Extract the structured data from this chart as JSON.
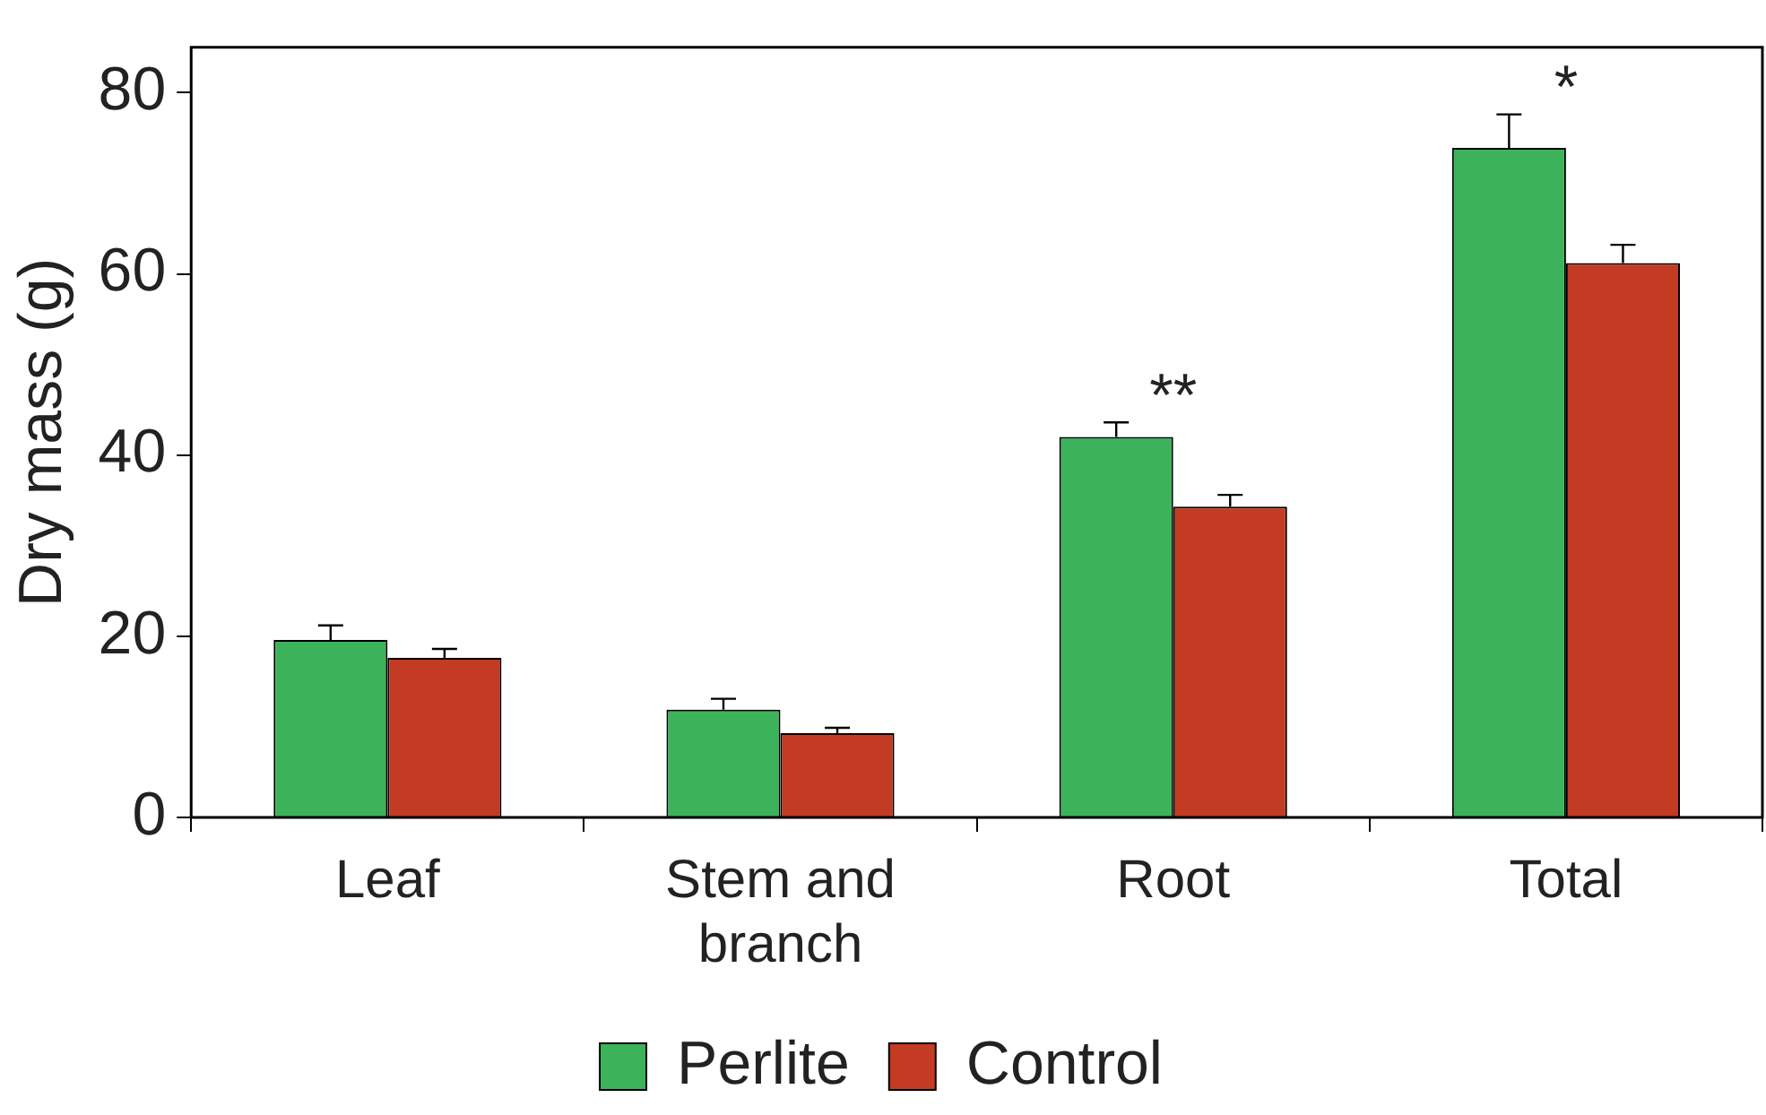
{
  "chart_data": {
    "type": "bar",
    "ylabel": "Dry mass (g)",
    "categories": [
      "Leaf",
      "Stem and branch",
      "Root",
      "Total"
    ],
    "series": [
      {
        "name": "Perlite",
        "color": "#3cb35a",
        "values": [
          19.6,
          11.9,
          42.0,
          73.9
        ],
        "errors": [
          [
            19.6,
            21.2
          ],
          [
            11.9,
            13.1
          ],
          [
            42.0,
            43.6
          ],
          [
            73.9,
            77.6
          ]
        ]
      },
      {
        "name": "Control",
        "color": "#c23b22",
        "values": [
          17.6,
          9.3,
          34.3,
          61.2
        ],
        "errors": [
          [
            17.6,
            18.6
          ],
          [
            9.3,
            9.9
          ],
          [
            34.3,
            35.6
          ],
          [
            61.2,
            63.2
          ]
        ]
      }
    ],
    "ylim": [
      0,
      85
    ],
    "yticks": [
      0,
      20,
      40,
      60,
      80
    ],
    "legend": "bottom",
    "annotations": [
      "**",
      "*"
    ]
  }
}
